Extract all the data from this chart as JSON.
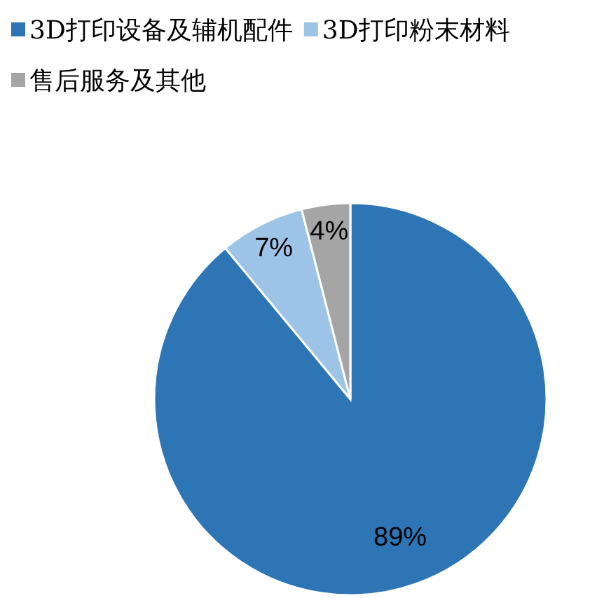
{
  "chart_data": {
    "type": "pie",
    "categories": [
      "3D打印设备及辅机配件",
      "3D打印粉末材料",
      "售后服务及其他"
    ],
    "values": [
      89,
      7,
      4
    ],
    "colors": [
      "#2e75b6",
      "#9dc3e6",
      "#a5a5a5"
    ],
    "value_labels": [
      "89%",
      "7%",
      "4%"
    ],
    "legend": "top left"
  }
}
